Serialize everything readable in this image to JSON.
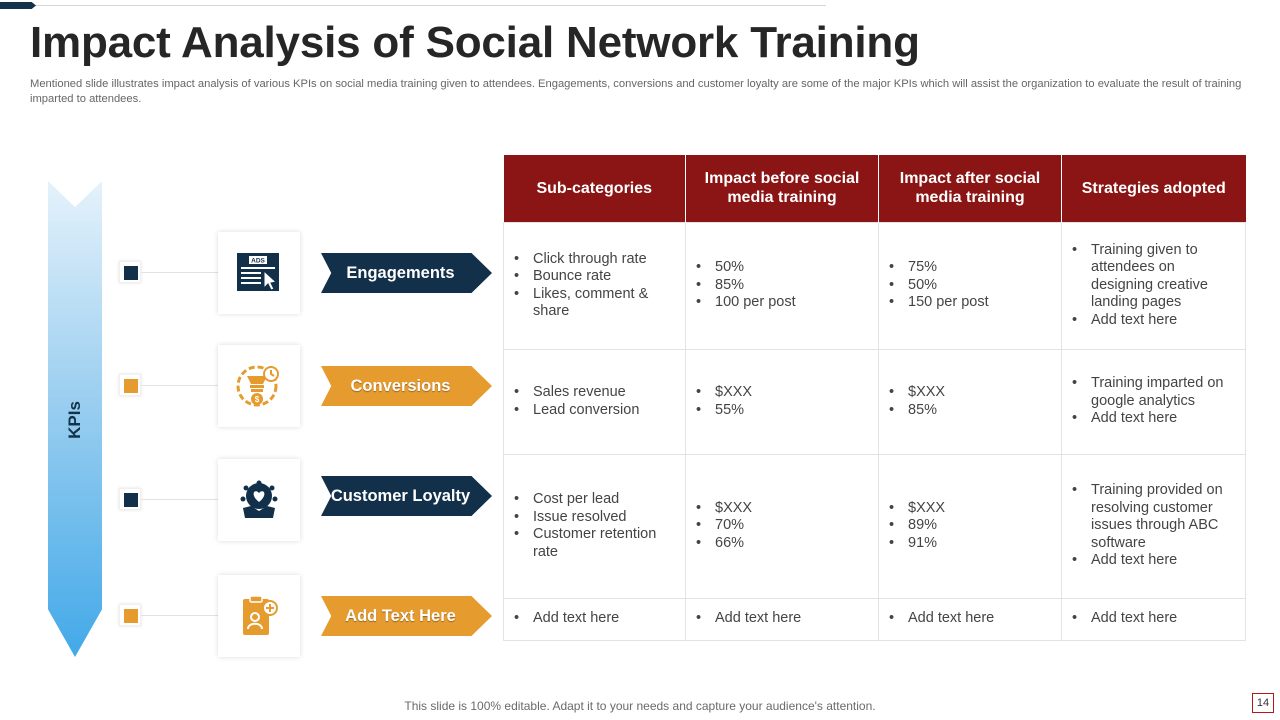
{
  "title": "Impact Analysis of Social Network Training",
  "subtitle": "Mentioned slide illustrates impact analysis of various KPIs on social media training given to attendees. Engagements, conversions and customer loyalty are some of the major KPIs which will assist the organization to evaluate the result of training imparted to attendees.",
  "kpi_axis_label": "KPIs",
  "colors": {
    "dark": "#12304a",
    "orange": "#e69b2f",
    "header_red": "#8b1414",
    "arrow_blue": "#42a9e8"
  },
  "kpis": [
    {
      "label": "Engagements",
      "icon": "ads-click-icon",
      "color": "dark"
    },
    {
      "label": "Conversions",
      "icon": "dollar-bulb-icon",
      "color": "orange"
    },
    {
      "label": "Customer Loyalty",
      "icon": "heart-hand-icon",
      "color": "dark"
    },
    {
      "label": "Add Text Here",
      "icon": "clipboard-user-icon",
      "color": "orange"
    }
  ],
  "table": {
    "headers": [
      "Sub-categories",
      "Impact before social media training",
      "Impact after social media training",
      "Strategies adopted"
    ],
    "rows": [
      [
        [
          "Click through rate",
          "Bounce rate",
          "Likes, comment & share"
        ],
        [
          "50%",
          "85%",
          "100 per post"
        ],
        [
          "75%",
          "50%",
          "150 per post"
        ],
        [
          "Training given to attendees on designing creative landing pages",
          "Add text here"
        ]
      ],
      [
        [
          "Sales revenue",
          "Lead conversion"
        ],
        [
          "$XXX",
          "55%"
        ],
        [
          "$XXX",
          "85%"
        ],
        [
          "Training imparted on google analytics",
          "Add text here"
        ]
      ],
      [
        [
          "Cost per lead",
          "Issue resolved",
          "Customer retention rate"
        ],
        [
          "$XXX",
          "70%",
          "66%"
        ],
        [
          "$XXX",
          "89%",
          "91%"
        ],
        [
          "Training provided on resolving customer issues through ABC software",
          "Add text here"
        ]
      ],
      [
        [
          "Add text here"
        ],
        [
          "Add text here"
        ],
        [
          "Add text here"
        ],
        [
          "Add text here"
        ]
      ]
    ]
  },
  "footer": "This slide is 100% editable. Adapt it to your needs and capture your audience's attention.",
  "page_number": "14"
}
